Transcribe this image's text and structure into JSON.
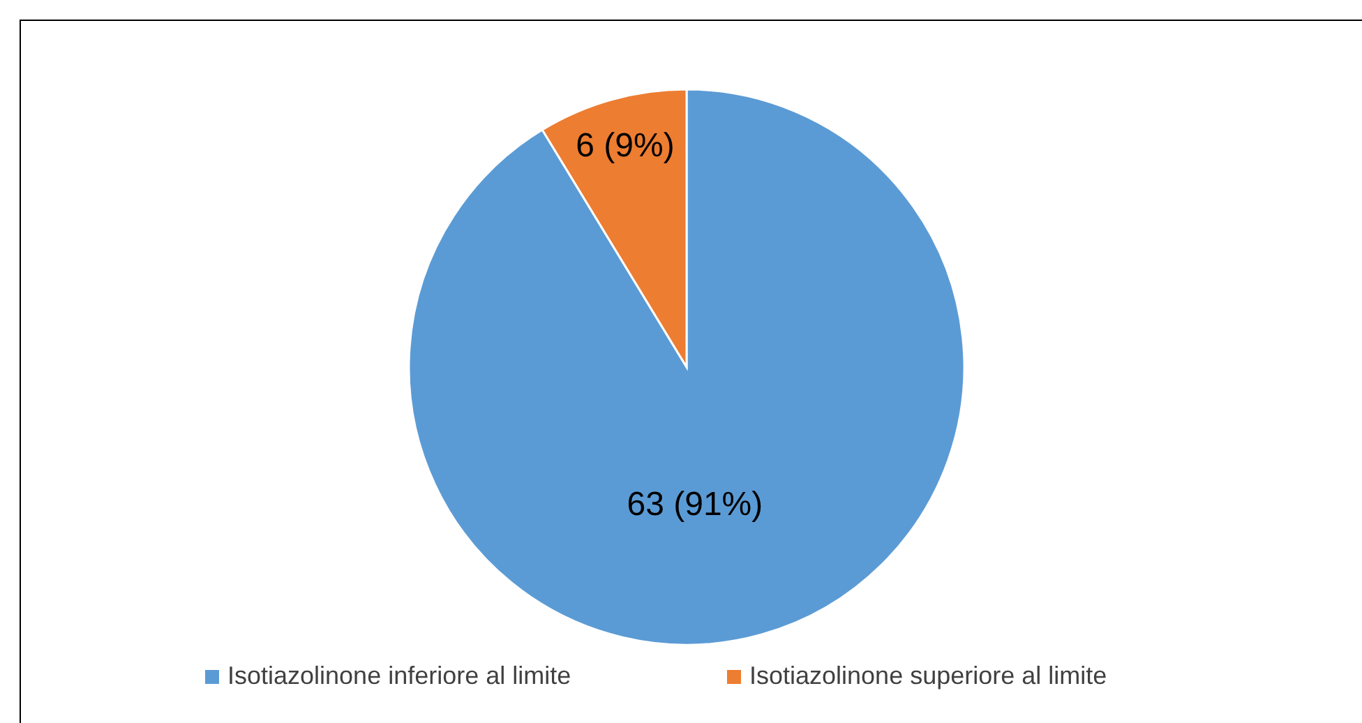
{
  "chart_data": {
    "type": "pie",
    "categories": [
      "Isotiazolinone inferiore al limite",
      "Isotiazolinone superiore al limite"
    ],
    "values": [
      63,
      6
    ],
    "colors": [
      "#5b9bd5",
      "#ed7d31"
    ],
    "value_labels": [
      "63 (91%)",
      "6 (9%)"
    ],
    "legend": "bottom"
  }
}
